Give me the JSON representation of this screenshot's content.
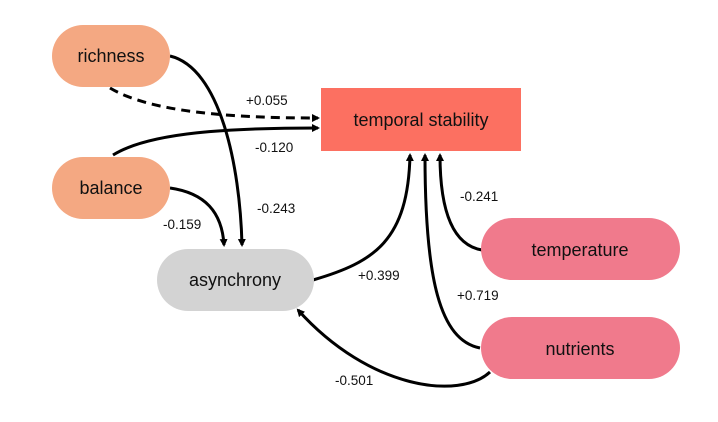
{
  "diagram": {
    "nodes": [
      {
        "id": "richness",
        "label": "richness",
        "color": "#f4a882"
      },
      {
        "id": "balance",
        "label": "balance",
        "color": "#f4a882"
      },
      {
        "id": "asynchrony",
        "label": "asynchrony",
        "color": "#d3d3d3"
      },
      {
        "id": "stability",
        "label": "temporal stability",
        "color": "#fc7061"
      },
      {
        "id": "temperature",
        "label": "temperature",
        "color": "#f07a8c"
      },
      {
        "id": "nutrients",
        "label": "nutrients",
        "color": "#f07a8c"
      }
    ],
    "edges": [
      {
        "id": "richness-stability",
        "from": "richness",
        "to": "stability",
        "label": "+0.055",
        "style": "dashed"
      },
      {
        "id": "balance-stability",
        "from": "balance",
        "to": "stability",
        "label": "-0.120",
        "style": "solid"
      },
      {
        "id": "richness-asynchrony",
        "from": "richness",
        "to": "asynchrony",
        "label": "-0.243",
        "style": "solid"
      },
      {
        "id": "balance-asynchrony",
        "from": "balance",
        "to": "asynchrony",
        "label": "-0.159",
        "style": "solid"
      },
      {
        "id": "asynchrony-stability",
        "from": "asynchrony",
        "to": "stability",
        "label": "+0.399",
        "style": "solid"
      },
      {
        "id": "temperature-stability",
        "from": "temperature",
        "to": "stability",
        "label": "-0.241",
        "style": "solid"
      },
      {
        "id": "nutrients-stability",
        "from": "nutrients",
        "to": "stability",
        "label": "+0.719",
        "style": "solid"
      },
      {
        "id": "nutrients-asynchrony",
        "from": "nutrients",
        "to": "asynchrony",
        "label": "-0.501",
        "style": "solid"
      }
    ]
  }
}
